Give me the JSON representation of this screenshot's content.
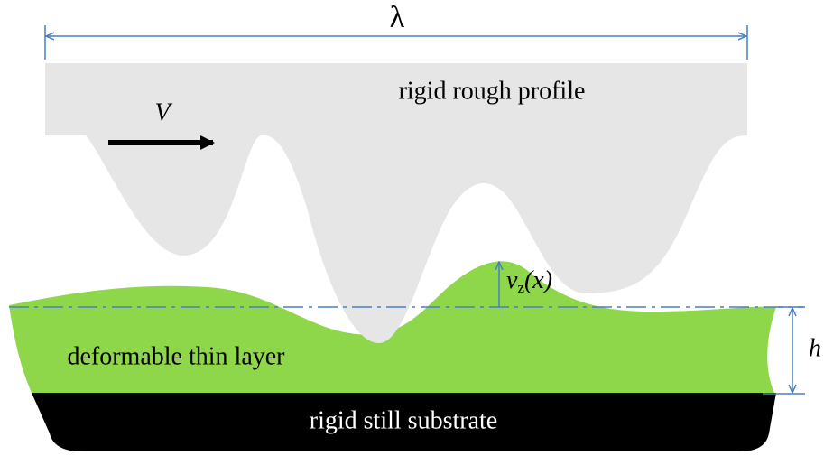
{
  "labels": {
    "wavelength": "λ",
    "profile": "rigid rough profile",
    "velocity": "V",
    "displacement": {
      "symbol": "v",
      "subscript": "z",
      "argument": "(x)"
    },
    "layer": "deformable thin layer",
    "thickness": "h",
    "substrate": "rigid still substrate"
  }
}
